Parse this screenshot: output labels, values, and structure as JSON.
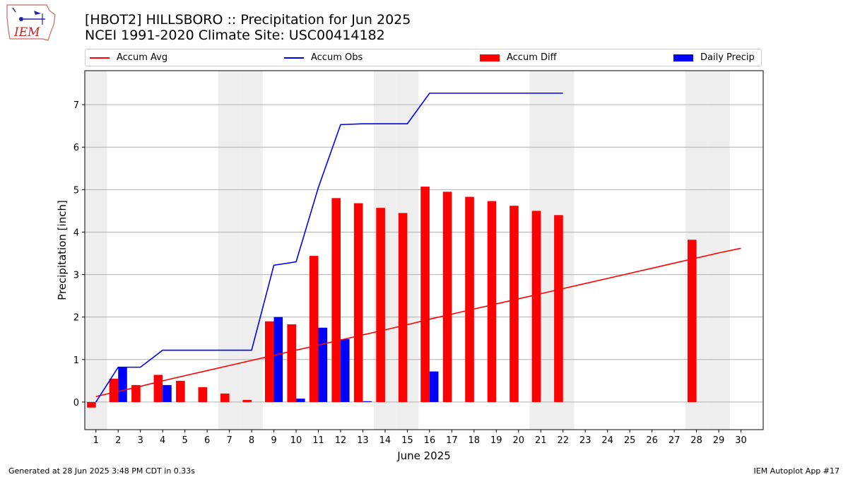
{
  "header": {
    "title_line1": "[HBOT2] HILLSBORO :: Precipitation for Jun 2025",
    "title_line2": "NCEI 1991-2020 Climate Site: USC00414182",
    "logo_text": "IEM"
  },
  "footer": {
    "generated": "Generated at 28 Jun 2025 3:48 PM CDT in 0.33s",
    "app": "IEM Autoplot App #17"
  },
  "colors": {
    "avg": "#ff0000",
    "obs": "#0000ff",
    "diff": "#ff0000",
    "daily": "#0000ff",
    "weekend_band": "#eeeeee",
    "grid": "#b0b0b0"
  },
  "chart_data": {
    "type": "bar",
    "title": "[HBOT2] HILLSBORO :: Precipitation for Jun 2025",
    "xlabel": "June 2025",
    "ylabel": "Precipitation [inch]",
    "xlim": [
      0.5,
      31
    ],
    "ylim": [
      -0.65,
      7.8
    ],
    "yticks": [
      0,
      1,
      2,
      3,
      4,
      5,
      6,
      7
    ],
    "grid": "horizontal",
    "legend_position": "top",
    "legend": [
      "Accum Avg",
      "Accum Obs",
      "Accum Diff",
      "Daily Precip"
    ],
    "days": [
      1,
      2,
      3,
      4,
      5,
      6,
      7,
      8,
      9,
      10,
      11,
      12,
      13,
      14,
      15,
      16,
      17,
      18,
      19,
      20,
      21,
      22,
      23,
      24,
      25,
      26,
      27,
      28,
      29,
      30
    ],
    "weekend_days": [
      1,
      7,
      8,
      14,
      15,
      21,
      22,
      28,
      29
    ],
    "series": [
      {
        "name": "Accum Avg",
        "kind": "line",
        "values": [
          0.13,
          0.25,
          0.37,
          0.5,
          0.62,
          0.74,
          0.86,
          0.98,
          1.1,
          1.22,
          1.34,
          1.46,
          1.58,
          1.7,
          1.82,
          1.95,
          2.07,
          2.19,
          2.31,
          2.43,
          2.55,
          2.67,
          2.79,
          2.91,
          3.03,
          3.15,
          3.27,
          3.39,
          3.51,
          3.62
        ]
      },
      {
        "name": "Accum Obs",
        "kind": "line",
        "values": [
          0.0,
          0.82,
          0.82,
          1.22,
          1.22,
          1.22,
          1.22,
          1.22,
          3.22,
          3.3,
          5.05,
          6.53,
          6.55,
          6.55,
          6.55,
          7.27,
          7.27,
          7.27,
          7.27,
          7.27,
          7.27,
          7.27
        ]
      },
      {
        "name": "Accum Diff",
        "kind": "bar",
        "values": [
          -0.13,
          0.55,
          0.4,
          0.64,
          0.5,
          0.35,
          0.2,
          0.05,
          1.9,
          1.83,
          3.44,
          4.8,
          4.68,
          4.57,
          4.45,
          5.07,
          4.95,
          4.83,
          4.73,
          4.62,
          4.5,
          4.4,
          null,
          null,
          null,
          null,
          null,
          3.82,
          null,
          null
        ]
      },
      {
        "name": "Daily Precip",
        "kind": "bar",
        "values": [
          0.0,
          0.82,
          0.0,
          0.4,
          0.0,
          0.0,
          0.0,
          0.0,
          2.0,
          0.08,
          1.75,
          1.48,
          0.02,
          0.0,
          0.0,
          0.72,
          0.0,
          0.0,
          0.0,
          0.0,
          0.0,
          0.0
        ]
      }
    ]
  }
}
